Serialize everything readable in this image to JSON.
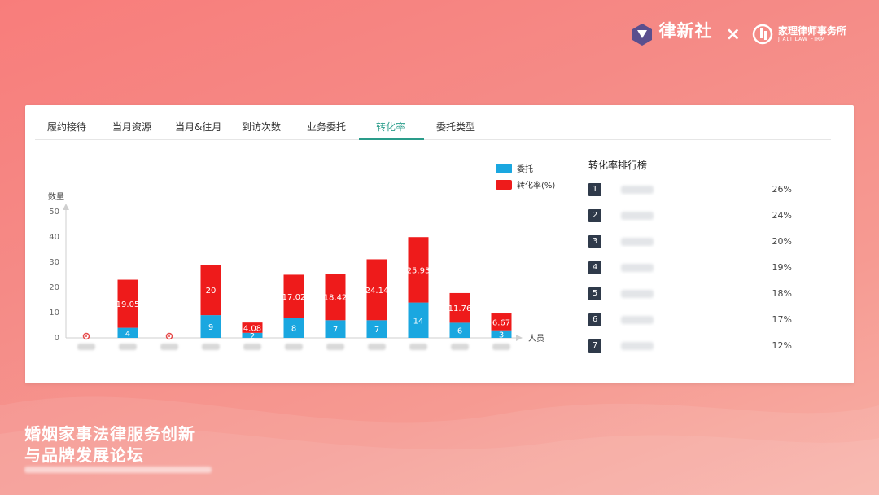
{
  "brand": {
    "name": "律新社",
    "cross": "×",
    "law_firm": "家理律师事务所",
    "law_firm_en": "JIALI LAW FIRM",
    "accent": "#ffffff"
  },
  "tabs": [
    {
      "label": "履约接待"
    },
    {
      "label": "当月资源"
    },
    {
      "label": "当月&往月"
    },
    {
      "label": "到访次数"
    },
    {
      "label": "业务委托"
    },
    {
      "label": "转化率",
      "active": true
    },
    {
      "label": "委托类型"
    }
  ],
  "chart_data": {
    "type": "bar",
    "stacked": true,
    "ylabel": "数量",
    "xlabel": "人员",
    "ylim": [
      0,
      50
    ],
    "yticks": [
      0,
      10,
      20,
      30,
      40,
      50
    ],
    "categories": [
      "",
      "",
      "",
      "",
      "",
      "",
      "",
      "",
      "",
      "",
      ""
    ],
    "series": [
      {
        "name": "委托",
        "color": "#1aa7e0",
        "values": [
          0,
          4,
          0,
          9,
          2,
          8,
          7,
          7,
          14,
          6,
          3
        ],
        "labels": [
          "0",
          "4",
          "0",
          "9",
          "2",
          "8",
          "7",
          "7",
          "14",
          "6",
          "3"
        ]
      },
      {
        "name": "转化率(%)",
        "color": "#ee1b1b",
        "values": [
          0,
          19.05,
          0,
          20,
          4.08,
          17.02,
          18.42,
          24.14,
          25.93,
          11.76,
          6.67
        ],
        "labels": [
          "0",
          "19.05",
          "0",
          "20",
          "4.08",
          "17.02",
          "18.42",
          "24.14",
          "25.93",
          "11.76",
          "6.67"
        ]
      }
    ],
    "legend": "top-right",
    "grid": false
  },
  "ranking": {
    "title": "转化率排行榜",
    "rows": [
      {
        "rank": "1",
        "pct": "26%"
      },
      {
        "rank": "2",
        "pct": "24%"
      },
      {
        "rank": "3",
        "pct": "20%"
      },
      {
        "rank": "4",
        "pct": "19%"
      },
      {
        "rank": "5",
        "pct": "18%"
      },
      {
        "rank": "6",
        "pct": "17%"
      },
      {
        "rank": "7",
        "pct": "12%"
      }
    ]
  },
  "footer": {
    "title_line1": "婚姻家事法律服务创新",
    "title_line2": "与品牌发展论坛"
  }
}
